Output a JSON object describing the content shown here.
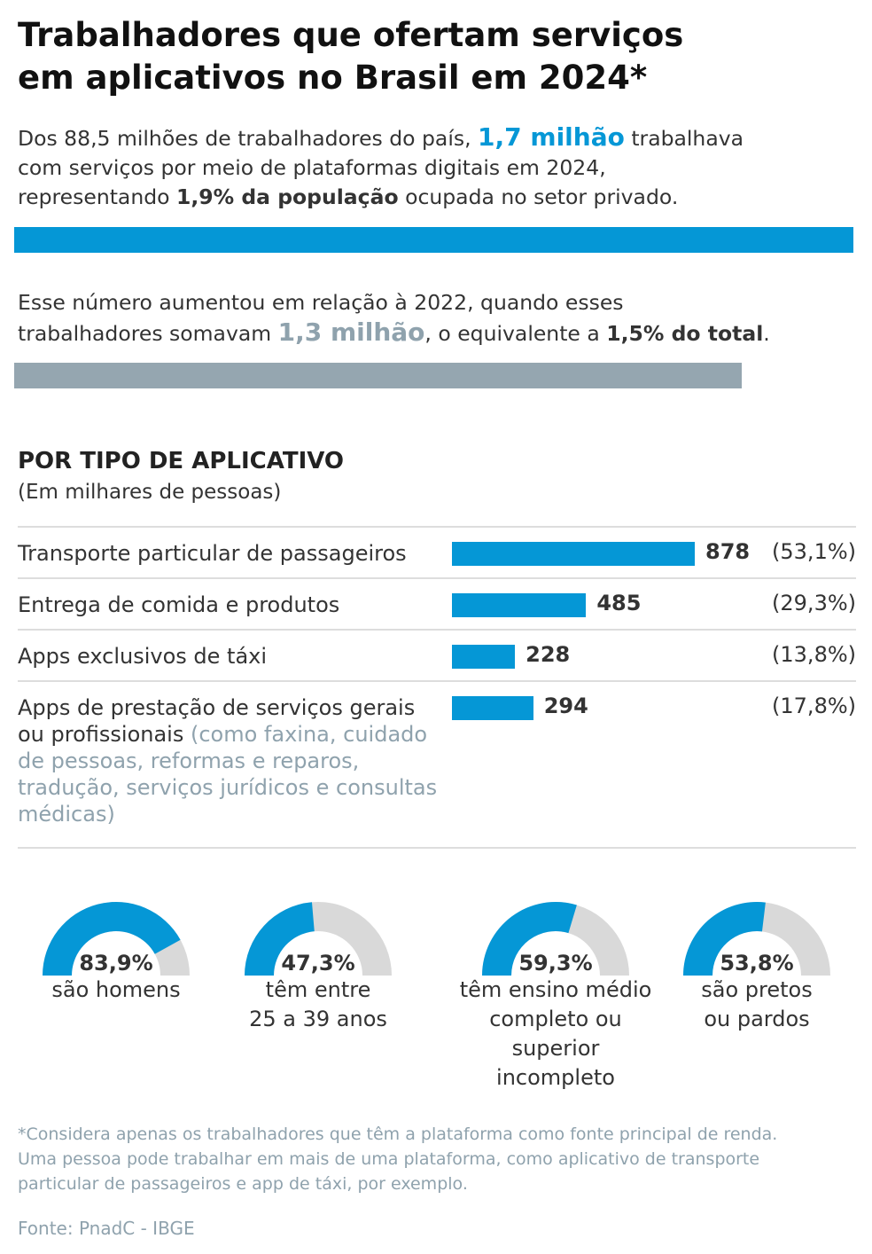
{
  "title": {
    "line1": "Trabalhadores que ofertam serviços",
    "line2": "em aplicativos no Brasil em 2024*"
  },
  "intro": {
    "p1_a": "Dos 88,5 milhões de trabalhadores do país, ",
    "p1_highlight": "1,7 milhão",
    "p1_b": " trabalhava",
    "p1_line2": "com serviços por meio de plataformas digitais em 2024,",
    "p1_c": "representando ",
    "p1_bold": "1,9% da população",
    "p1_d": " ocupada no setor privado.",
    "p2_line1": "Esse número aumentou em relação à 2022, quando esses",
    "p2_a": "trabalhadores somavam ",
    "p2_highlight": "1,3 milhão",
    "p2_b": ", o equivalente a ",
    "p2_bold": "1,5% do total",
    "p2_c": "."
  },
  "colors": {
    "blue": "#0597d6",
    "gray": "#95a6b0",
    "gauge_bg": "#d9d9d9"
  },
  "chart_data": [
    {
      "type": "bar",
      "title": "POR TIPO DE APLICATIVO",
      "subtitle": "(Em milhares de pessoas)",
      "categories": [
        {
          "label": "Transporte particular de passageiros",
          "note": ""
        },
        {
          "label": "Entrega de comida e produtos",
          "note": ""
        },
        {
          "label": "Apps exclusivos de táxi",
          "note": ""
        },
        {
          "label": "Apps de prestação de serviços gerais ou profissionais",
          "note": "(como faxina, cuidado de pessoas, reformas e reparos, tradução, serviços jurídicos e consultas médicas)"
        }
      ],
      "values": [
        878,
        485,
        228,
        294
      ],
      "value_labels": [
        "878",
        "485",
        "228",
        "294"
      ],
      "share_labels": [
        "(53,1%)",
        "(29,3%)",
        "(13,8%)",
        "(17,8%)"
      ]
    },
    {
      "type": "gauge",
      "items": [
        {
          "value": 83.9,
          "label": "83,9%",
          "text": [
            "são homens"
          ]
        },
        {
          "value": 47.3,
          "label": "47,3%",
          "text": [
            "têm entre",
            "25 a 39 anos"
          ]
        },
        {
          "value": 59.3,
          "label": "59,3%",
          "text": [
            "têm ensino médio",
            "completo ou",
            "superior",
            "incompleto"
          ]
        },
        {
          "value": 53.8,
          "label": "53,8%",
          "text": [
            "são pretos",
            "ou pardos"
          ]
        }
      ]
    }
  ],
  "footnote": [
    "*Considera apenas os trabalhadores que têm a plataforma como fonte principal de renda.",
    "Uma pessoa pode trabalhar em mais de uma plataforma, como aplicativo de transporte",
    "particular de passageiros e app de táxi, por exemplo."
  ],
  "source": "Fonte: PnadC - IBGE"
}
